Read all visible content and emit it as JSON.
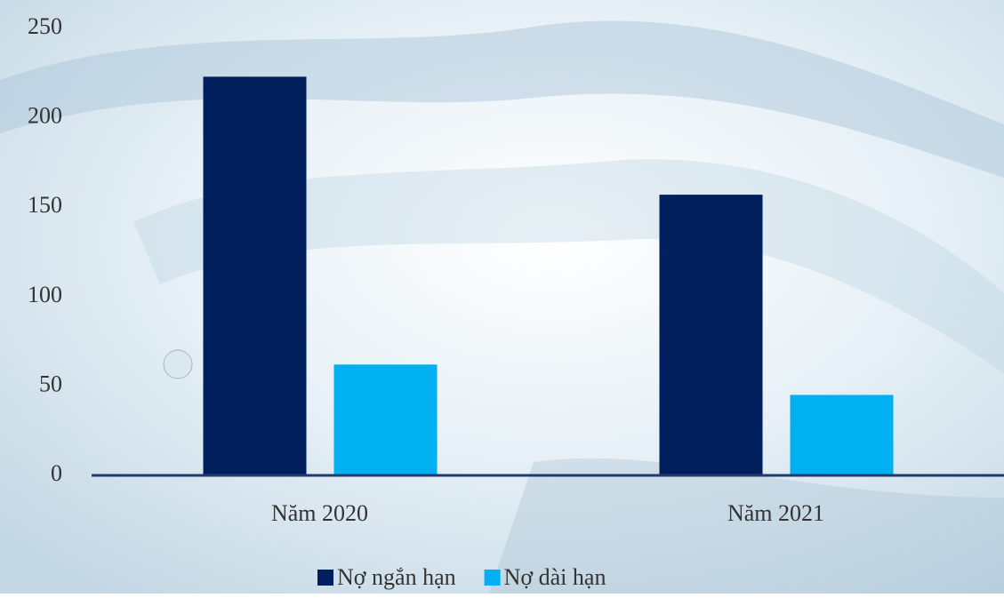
{
  "chart_data": {
    "type": "bar",
    "categories": [
      "Năm 2020",
      "Năm 2021"
    ],
    "series": [
      {
        "name": "Nợ ngắn hạn",
        "color": "#001f5c",
        "values": [
          223,
          157
        ]
      },
      {
        "name": "Nợ dài hạn",
        "color": "#00b0f0",
        "values": [
          62,
          45
        ]
      }
    ],
    "ylim": [
      0,
      250
    ],
    "yticks": [
      0,
      50,
      100,
      150,
      200,
      250
    ],
    "grid": false,
    "legend": "bottom"
  }
}
